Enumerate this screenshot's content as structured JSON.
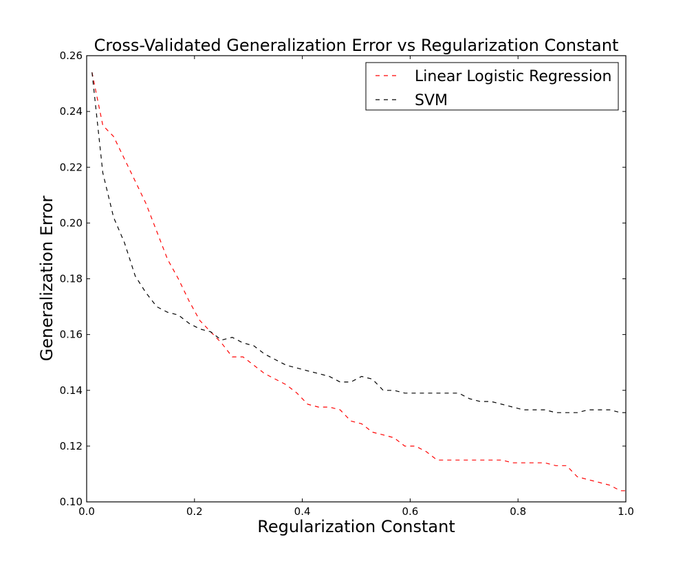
{
  "chart_data": {
    "type": "line",
    "title": "Cross-Validated Generalization Error vs Regularization Constant",
    "xlabel": "Regularization Constant",
    "ylabel": "Generalization Error",
    "xlim": [
      0.0,
      1.0
    ],
    "ylim": [
      0.1,
      0.26
    ],
    "x_ticks": [
      "0.0",
      "0.2",
      "0.4",
      "0.6",
      "0.8",
      "1.0"
    ],
    "y_ticks": [
      "0.10",
      "0.12",
      "0.14",
      "0.16",
      "0.18",
      "0.20",
      "0.22",
      "0.24",
      "0.26"
    ],
    "grid": false,
    "legend_position": "top-right",
    "x": [
      0.01,
      0.03,
      0.05,
      0.07,
      0.09,
      0.11,
      0.13,
      0.15,
      0.17,
      0.19,
      0.21,
      0.23,
      0.25,
      0.27,
      0.29,
      0.31,
      0.33,
      0.35,
      0.37,
      0.39,
      0.41,
      0.43,
      0.45,
      0.47,
      0.49,
      0.51,
      0.53,
      0.55,
      0.57,
      0.59,
      0.61,
      0.63,
      0.65,
      0.67,
      0.69,
      0.71,
      0.73,
      0.75,
      0.77,
      0.79,
      0.81,
      0.83,
      0.85,
      0.87,
      0.89,
      0.91,
      0.93,
      0.95,
      0.97,
      0.99,
      1.0
    ],
    "series": [
      {
        "name": "Linear Logistic Regression",
        "color": "#ff0000",
        "linestyle": "dashed",
        "values": [
          0.254,
          0.235,
          0.231,
          0.223,
          0.215,
          0.207,
          0.197,
          0.187,
          0.18,
          0.172,
          0.165,
          0.161,
          0.157,
          0.152,
          0.152,
          0.149,
          0.146,
          0.144,
          0.142,
          0.139,
          0.135,
          0.134,
          0.134,
          0.133,
          0.129,
          0.128,
          0.125,
          0.124,
          0.123,
          0.12,
          0.12,
          0.118,
          0.115,
          0.115,
          0.115,
          0.115,
          0.115,
          0.115,
          0.115,
          0.114,
          0.114,
          0.114,
          0.114,
          0.113,
          0.113,
          0.109,
          0.108,
          0.107,
          0.106,
          0.104,
          0.104
        ]
      },
      {
        "name": "SVM",
        "color": "#000000",
        "linestyle": "dashed",
        "values": [
          0.254,
          0.218,
          0.202,
          0.193,
          0.181,
          0.175,
          0.17,
          0.168,
          0.167,
          0.164,
          0.162,
          0.161,
          0.158,
          0.159,
          0.157,
          0.156,
          0.153,
          0.151,
          0.149,
          0.148,
          0.147,
          0.146,
          0.145,
          0.143,
          0.143,
          0.145,
          0.144,
          0.14,
          0.14,
          0.139,
          0.139,
          0.139,
          0.139,
          0.139,
          0.139,
          0.137,
          0.136,
          0.136,
          0.135,
          0.134,
          0.133,
          0.133,
          0.133,
          0.132,
          0.132,
          0.132,
          0.133,
          0.133,
          0.133,
          0.132,
          0.132
        ]
      }
    ]
  }
}
